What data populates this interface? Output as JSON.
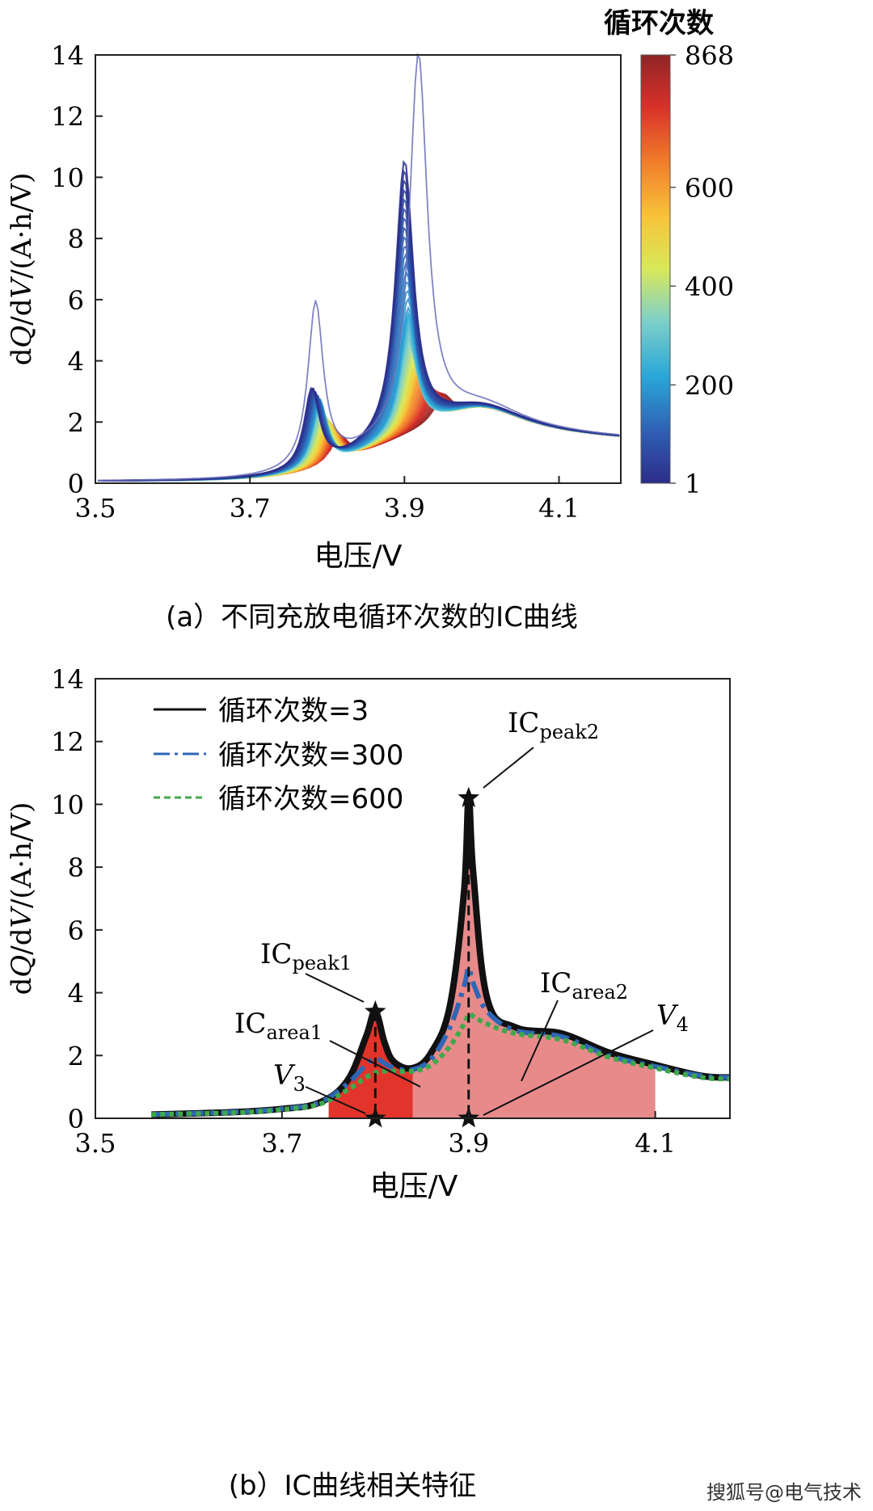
{
  "watermark": "搜狐号@电气技术",
  "charts": [
    {
      "id": "a",
      "caption": "(a）不同充放电循环次数的IC曲线",
      "xlabel": "电压/V",
      "ylabel_parts": {
        "d1": "d",
        "q": "Q",
        "d2": "/d",
        "v": "V",
        "unit": "/(A·h/V)"
      },
      "colorbar": {
        "title": "循环次数",
        "ticks": [
          "868",
          "600",
          "400",
          "200",
          "1"
        ]
      }
    },
    {
      "id": "b",
      "caption": "(b）IC曲线相关特征",
      "xlabel": "电压/V",
      "ylabel_parts": {
        "d1": "d",
        "q": "Q",
        "d2": "/d",
        "v": "V",
        "unit": "/(A·h/V)"
      },
      "legend": [
        "循环次数=3",
        "循环次数=300",
        "循环次数=600"
      ],
      "annotations": {
        "peak1": {
          "base": "IC",
          "sub": "peak1"
        },
        "peak2": {
          "base": "IC",
          "sub": "peak2"
        },
        "area1": {
          "base": "IC",
          "sub": "area1"
        },
        "area2": {
          "base": "IC",
          "sub": "area2"
        },
        "v3": {
          "base": "V",
          "sub": "3"
        },
        "v4": {
          "base": "V",
          "sub": "4"
        }
      }
    }
  ],
  "chart_data": [
    {
      "type": "line",
      "xlim": [
        3.5,
        4.18
      ],
      "ylim": [
        0,
        14
      ],
      "xticks": [
        3.5,
        3.7,
        3.9,
        4.1
      ],
      "yticks": [
        0,
        2,
        4,
        6,
        8,
        10,
        12,
        14
      ],
      "colorbar_range": [
        1,
        868
      ],
      "colormap": [
        "#2c2d8a",
        "#2f5fb3",
        "#2aa7d8",
        "#7fd0c8",
        "#d8e85a",
        "#f8c43a",
        "#f07d2a",
        "#d8302a",
        "#8f2525"
      ],
      "series": [
        {
          "cycle": 1,
          "peak1": {
            "x": 3.785,
            "y": 5.4
          },
          "peak2": {
            "x": 3.918,
            "y": 13.8
          },
          "color": "#6a6fb8"
        },
        {
          "cycle": 3,
          "peak1": {
            "x": 3.78,
            "y": 2.6
          },
          "peak2": {
            "x": 3.9,
            "y": 10.5
          }
        },
        {
          "cycle": 100,
          "peak1": {
            "x": 3.785,
            "y": 2.4
          },
          "peak2": {
            "x": 3.9,
            "y": 8.0
          }
        },
        {
          "cycle": 200,
          "peak1": {
            "x": 3.79,
            "y": 2.2
          },
          "peak2": {
            "x": 3.905,
            "y": 5.5
          }
        },
        {
          "cycle": 300,
          "peak1": {
            "x": 3.79,
            "y": 1.9
          },
          "peak2": {
            "x": 3.905,
            "y": 4.6
          }
        },
        {
          "cycle": 400,
          "peak1": {
            "x": 3.795,
            "y": 1.7
          },
          "peak2": {
            "x": 3.91,
            "y": 4.0
          }
        },
        {
          "cycle": 500,
          "peak1": {
            "x": 3.8,
            "y": 1.5
          },
          "peak2": {
            "x": 3.915,
            "y": 3.5
          }
        },
        {
          "cycle": 600,
          "peak1": {
            "x": 3.805,
            "y": 1.3
          },
          "peak2": {
            "x": 3.92,
            "y": 3.2
          }
        },
        {
          "cycle": 700,
          "peak1": {
            "x": 3.81,
            "y": 1.1
          },
          "peak2": {
            "x": 3.93,
            "y": 2.8
          }
        },
        {
          "cycle": 800,
          "peak1": {
            "x": 3.815,
            "y": 0.9
          },
          "peak2": {
            "x": 3.94,
            "y": 2.5
          }
        },
        {
          "cycle": 868,
          "peak1": {
            "x": 3.82,
            "y": 0.8
          },
          "peak2": {
            "x": 3.95,
            "y": 2.3
          }
        }
      ]
    },
    {
      "type": "line",
      "xlim": [
        3.5,
        4.18
      ],
      "ylim": [
        0,
        14
      ],
      "xticks": [
        3.5,
        3.7,
        3.9,
        4.1
      ],
      "yticks": [
        0,
        2,
        4,
        6,
        8,
        10,
        12,
        14
      ],
      "series": [
        {
          "name": "循环次数=3",
          "style": "solid",
          "color": "#111111",
          "x": [
            3.56,
            3.65,
            3.7,
            3.74,
            3.77,
            3.79,
            3.8,
            3.81,
            3.82,
            3.84,
            3.86,
            3.88,
            3.895,
            3.9,
            3.905,
            3.92,
            3.95,
            4.0,
            4.05,
            4.1,
            4.15,
            4.18
          ],
          "y": [
            0.12,
            0.2,
            0.3,
            0.5,
            1.2,
            2.6,
            3.4,
            2.4,
            1.8,
            1.6,
            2.1,
            3.6,
            7.2,
            10.2,
            7.8,
            3.8,
            2.9,
            2.7,
            2.1,
            1.7,
            1.35,
            1.3
          ]
        },
        {
          "name": "循环次数=300",
          "style": "dashdot",
          "color": "#2f66b5",
          "x": [
            3.56,
            3.65,
            3.7,
            3.74,
            3.77,
            3.79,
            3.8,
            3.81,
            3.82,
            3.84,
            3.86,
            3.88,
            3.895,
            3.9,
            3.905,
            3.92,
            3.95,
            4.0,
            4.05,
            4.1,
            4.15,
            4.18
          ],
          "y": [
            0.12,
            0.2,
            0.3,
            0.5,
            1.1,
            1.7,
            1.9,
            1.75,
            1.6,
            1.55,
            1.9,
            2.9,
            4.2,
            4.8,
            4.3,
            3.4,
            2.8,
            2.6,
            2.0,
            1.65,
            1.35,
            1.3
          ]
        },
        {
          "name": "循环次数=600",
          "style": "dashed",
          "color": "#3fa84a",
          "x": [
            3.56,
            3.65,
            3.7,
            3.74,
            3.77,
            3.79,
            3.8,
            3.81,
            3.82,
            3.84,
            3.86,
            3.88,
            3.895,
            3.9,
            3.905,
            3.92,
            3.95,
            4.0,
            4.05,
            4.1,
            4.15,
            4.18
          ],
          "y": [
            0.12,
            0.18,
            0.28,
            0.45,
            0.9,
            1.3,
            1.45,
            1.5,
            1.5,
            1.5,
            1.7,
            2.3,
            3.0,
            3.3,
            3.25,
            3.0,
            2.7,
            2.5,
            1.95,
            1.6,
            1.3,
            1.25
          ]
        }
      ],
      "markers": [
        {
          "name": "IC_peak1",
          "x": 3.8,
          "y": 3.4
        },
        {
          "name": "IC_peak2",
          "x": 3.9,
          "y": 10.2
        },
        {
          "name": "V3",
          "x": 3.8,
          "y": 0
        },
        {
          "name": "V4",
          "x": 3.9,
          "y": 0
        }
      ],
      "shaded_regions": [
        {
          "name": "IC_area1",
          "x_start": 3.75,
          "x_end": 3.84,
          "color": "#e2342b"
        },
        {
          "name": "IC_area2",
          "x_start": 3.84,
          "x_end": 4.1,
          "color": "#e88a8a"
        }
      ]
    }
  ]
}
